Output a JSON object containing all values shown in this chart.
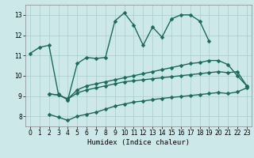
{
  "background_color": "#cce8e8",
  "grid_color": "#aacccc",
  "line_color": "#1a6b5a",
  "markersize": 2.5,
  "linewidth": 1.0,
  "xlabel": "Humidex (Indice chaleur)",
  "xlim": [
    -0.5,
    23.5
  ],
  "ylim": [
    7.5,
    13.5
  ],
  "yticks": [
    8,
    9,
    10,
    11,
    12,
    13
  ],
  "xticks": [
    0,
    1,
    2,
    3,
    4,
    5,
    6,
    7,
    8,
    9,
    10,
    11,
    12,
    13,
    14,
    15,
    16,
    17,
    18,
    19,
    20,
    21,
    22,
    23
  ],
  "series": [
    {
      "x": [
        0,
        1,
        2,
        3,
        4,
        5,
        6,
        7,
        8,
        9,
        10,
        11,
        12,
        13,
        14,
        15,
        16,
        17,
        18,
        19,
        20,
        21,
        22,
        23
      ],
      "y": [
        11.1,
        11.4,
        11.5,
        9.1,
        8.8,
        10.6,
        10.9,
        10.85,
        10.9,
        12.7,
        13.1,
        12.5,
        11.5,
        12.4,
        11.9,
        12.8,
        13.0,
        13.0,
        12.7,
        11.7,
        null,
        null,
        null,
        null
      ]
    },
    {
      "x": [
        2,
        3,
        4,
        5,
        6,
        7,
        8,
        9,
        10,
        11,
        12,
        13,
        14,
        15,
        16,
        17,
        18,
        19,
        20,
        21,
        22,
        23
      ],
      "y": [
        9.1,
        9.05,
        8.85,
        9.3,
        9.5,
        9.6,
        9.7,
        9.8,
        9.9,
        10.0,
        10.1,
        10.2,
        10.3,
        10.4,
        10.5,
        10.6,
        10.65,
        10.75,
        10.75,
        10.55,
        10.0,
        9.5
      ]
    },
    {
      "x": [
        2,
        3,
        4,
        5,
        6,
        7,
        8,
        9,
        10,
        11,
        12,
        13,
        14,
        15,
        16,
        17,
        18,
        19,
        20,
        21,
        22,
        23
      ],
      "y": [
        9.1,
        9.05,
        8.85,
        9.15,
        9.3,
        9.4,
        9.5,
        9.6,
        9.7,
        9.75,
        9.8,
        9.85,
        9.9,
        9.95,
        10.0,
        10.05,
        10.1,
        10.15,
        10.2,
        10.15,
        10.2,
        9.5
      ]
    },
    {
      "x": [
        2,
        3,
        4,
        5,
        6,
        7,
        8,
        9,
        10,
        11,
        12,
        13,
        14,
        15,
        16,
        17,
        18,
        19,
        20,
        21,
        22,
        23
      ],
      "y": [
        8.1,
        7.95,
        7.8,
        8.0,
        8.1,
        8.2,
        8.35,
        8.5,
        8.6,
        8.7,
        8.75,
        8.82,
        8.88,
        8.93,
        8.97,
        9.02,
        9.07,
        9.12,
        9.17,
        9.12,
        9.2,
        9.4
      ]
    }
  ]
}
